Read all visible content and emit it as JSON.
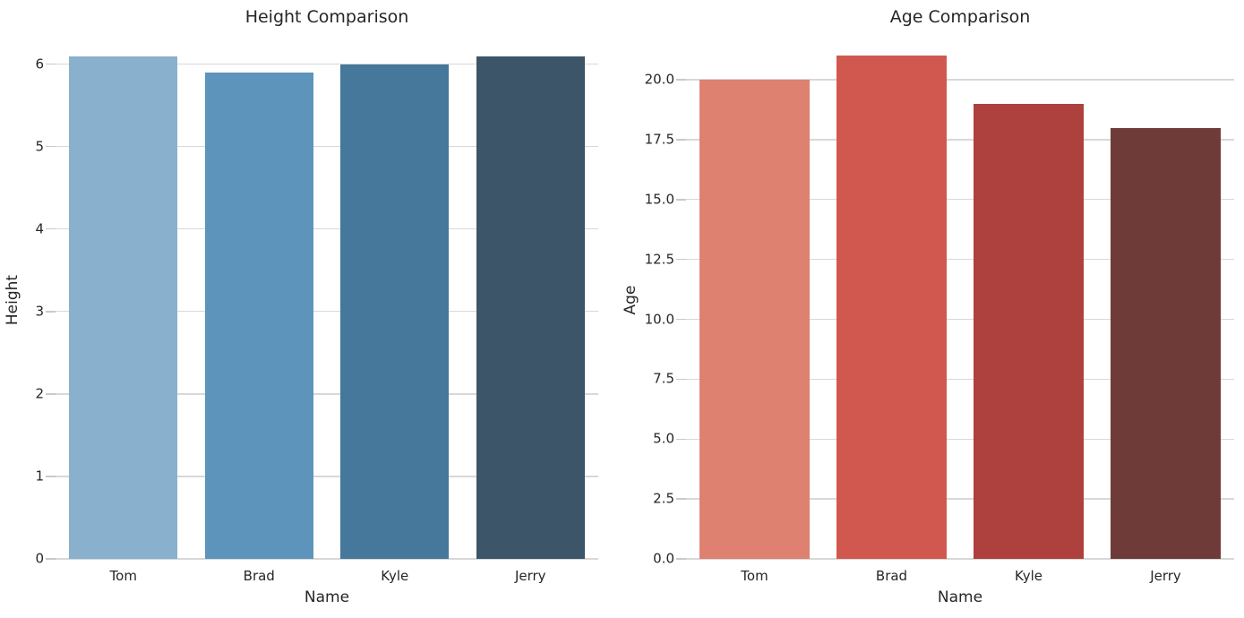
{
  "figure": {
    "background": "#ffffff",
    "text_color": "#262626",
    "grid_color": "#d8d8d8",
    "tick_color": "#c9c9c9"
  },
  "chart_data": [
    {
      "type": "bar",
      "title": "Height Comparison",
      "xlabel": "Name",
      "ylabel": "Height",
      "categories": [
        "Tom",
        "Brad",
        "Kyle",
        "Jerry"
      ],
      "values": [
        6.1,
        5.9,
        6.0,
        6.1
      ],
      "bar_colors": [
        "#89b0cc",
        "#5d94bb",
        "#45789a",
        "#3d5568"
      ],
      "yticks": [
        0,
        1,
        2,
        3,
        4,
        5,
        6
      ],
      "ytick_labels": [
        "0",
        "1",
        "2",
        "3",
        "4",
        "5",
        "6"
      ],
      "ylim": [
        0,
        6.29
      ],
      "grid": true,
      "legend": "none"
    },
    {
      "type": "bar",
      "title": "Age Comparison",
      "xlabel": "Name",
      "ylabel": "Age",
      "categories": [
        "Tom",
        "Brad",
        "Kyle",
        "Jerry"
      ],
      "values": [
        20,
        21,
        19,
        18
      ],
      "bar_colors": [
        "#de8170",
        "#d1584f",
        "#ae413d",
        "#6f3b38"
      ],
      "yticks": [
        0,
        2.5,
        5,
        7.5,
        10,
        12.5,
        15,
        17.5,
        20
      ],
      "ytick_labels": [
        "0.0",
        "2.5",
        "5.0",
        "7.5",
        "10.0",
        "12.5",
        "15.0",
        "17.5",
        "20.0"
      ],
      "ylim": [
        0,
        21.65
      ],
      "grid": true,
      "legend": "none"
    }
  ]
}
